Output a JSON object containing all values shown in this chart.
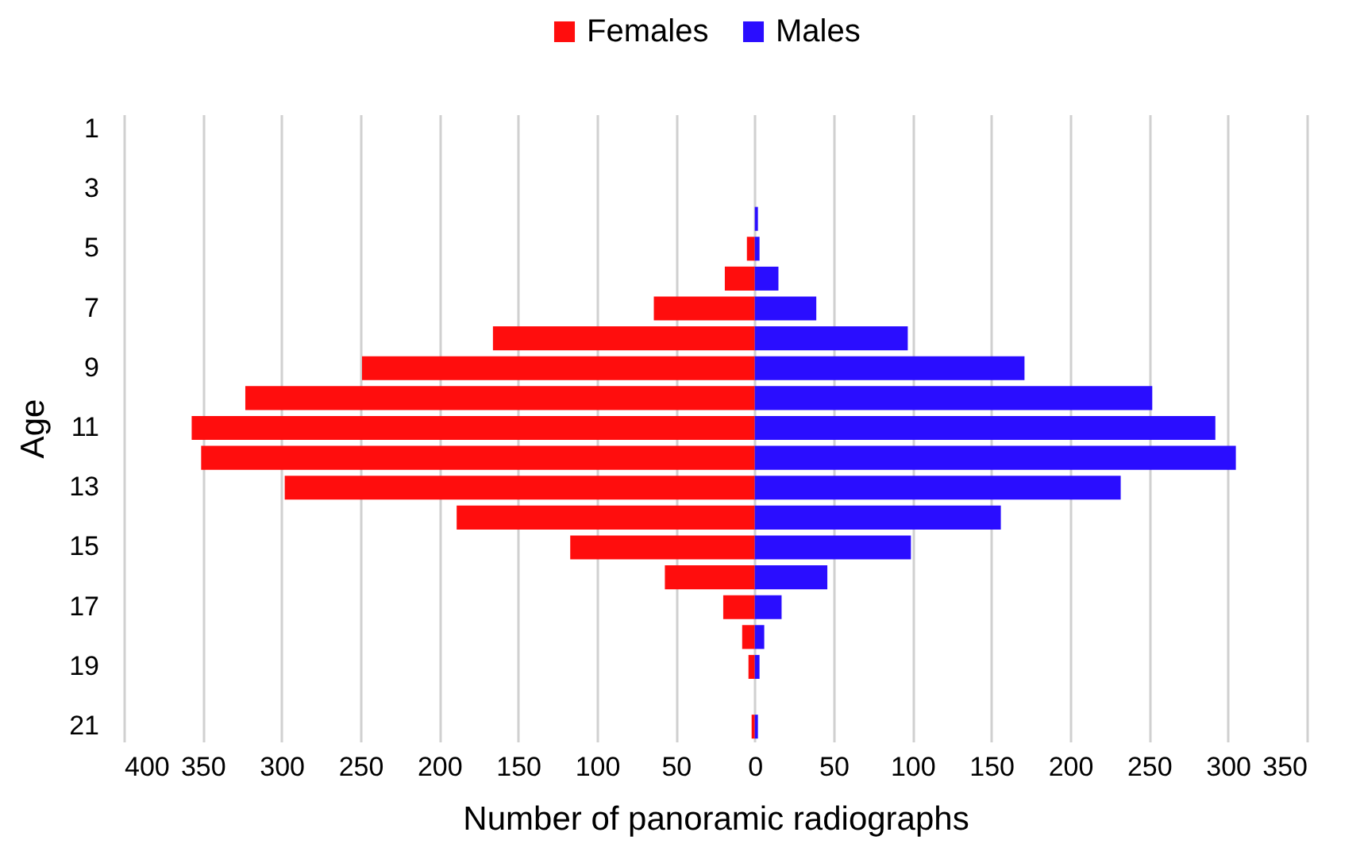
{
  "chart_data": {
    "type": "bar",
    "orientation": "horizontal",
    "stacked": true,
    "xlabel": "Number of panoramic radiographs",
    "ylabel": "Age",
    "categories": [
      "1",
      null,
      "3",
      null,
      "5",
      null,
      "7",
      null,
      "9",
      null,
      "11",
      null,
      "13",
      null,
      "15",
      null,
      "17",
      null,
      "19",
      null,
      "21"
    ],
    "series": [
      {
        "name": "Females",
        "color": "#ff0d0d",
        "values": [
          0,
          0,
          0,
          0,
          -5,
          -19,
          -64,
          -166,
          -249,
          -323,
          -357,
          -351,
          -298,
          -189,
          -117,
          -57,
          -20,
          -8,
          -4,
          0,
          -2
        ]
      },
      {
        "name": "Males",
        "color": "#2a0dff",
        "values": [
          0,
          0,
          0,
          2,
          3,
          15,
          39,
          97,
          171,
          252,
          292,
          305,
          232,
          156,
          99,
          46,
          17,
          6,
          3,
          0,
          2
        ]
      }
    ],
    "xlim": [
      -400,
      350
    ],
    "xticks": [
      {
        "value": -400,
        "label": "400"
      },
      {
        "value": -350,
        "label": "350"
      },
      {
        "value": -300,
        "label": "300"
      },
      {
        "value": -250,
        "label": "250"
      },
      {
        "value": -200,
        "label": "200"
      },
      {
        "value": -150,
        "label": "150"
      },
      {
        "value": -100,
        "label": "100"
      },
      {
        "value": -50,
        "label": "50"
      },
      0,
      50,
      100,
      150,
      200,
      250,
      300,
      350
    ],
    "grid": "x",
    "legend": "top"
  }
}
